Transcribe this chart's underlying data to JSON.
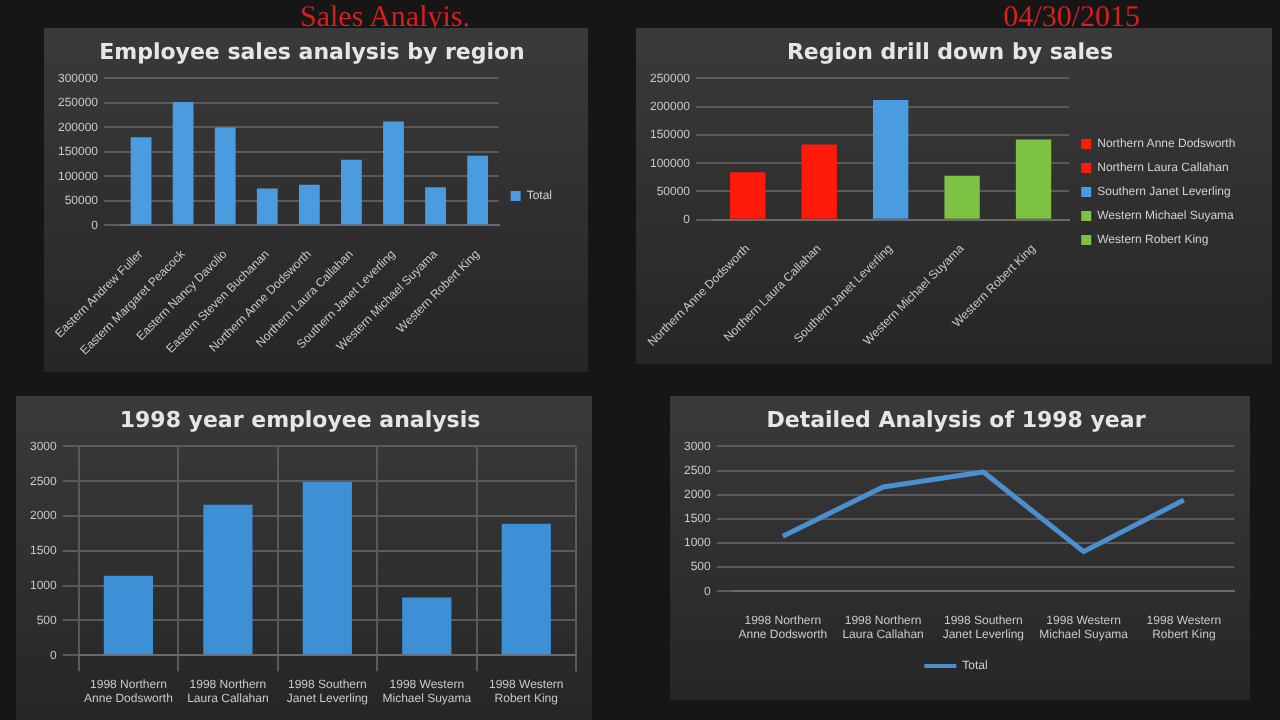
{
  "chart_data": [
    {
      "type": "other",
      "title": "Sales Analyis.",
      "subtitle": "04/30/2015"
    },
    {
      "type": "bar",
      "title": "Employee sales analysis by region",
      "categories": [
        "Eastern Andrew Fuller",
        "Eastern Margaret Peacock",
        "Eastern Nancy Davolio",
        "Eastern Steven Buchanan",
        "Northern Anne Dodsworth",
        "Northern Laura Callahan",
        "Southern Janet Leverling",
        "Western Michael Suyama",
        "Western Robert King"
      ],
      "series": [
        {
          "name": "Total",
          "color": "#4a9be0",
          "values": [
            180000,
            252000,
            200000,
            75000,
            83000,
            134000,
            212000,
            78000,
            142000
          ]
        }
      ],
      "ylim": [
        0,
        300000
      ],
      "yticks": [
        0,
        50000,
        100000,
        150000,
        200000,
        250000,
        300000
      ],
      "grid": "y",
      "legend": "right"
    },
    {
      "type": "bar",
      "title": "Region drill down by sales",
      "categories": [
        "Northern Anne Dodsworth",
        "Northern Laura Callahan",
        "Southern Janet Leverling",
        "Western Michael Suyama",
        "Western Robert King"
      ],
      "series": [
        {
          "name": "Northern Anne Dodsworth",
          "color": "#ff1a0a",
          "values": [
            84000,
            null,
            null,
            null,
            null
          ]
        },
        {
          "name": "Northern Laura Callahan",
          "color": "#ff1a0a",
          "values": [
            null,
            133000,
            null,
            null,
            null
          ]
        },
        {
          "name": "Southern Janet Leverling",
          "color": "#4a9be0",
          "values": [
            null,
            null,
            212000,
            null,
            null
          ]
        },
        {
          "name": "Western Michael Suyama",
          "color": "#7dc242",
          "values": [
            null,
            null,
            null,
            78000,
            null
          ]
        },
        {
          "name": "Western Robert King",
          "color": "#7dc242",
          "values": [
            null,
            null,
            null,
            null,
            142000
          ]
        }
      ],
      "stacked": true,
      "ylim": [
        0,
        250000
      ],
      "yticks": [
        0,
        50000,
        100000,
        150000,
        200000,
        250000
      ],
      "grid": "y",
      "legend": "right"
    },
    {
      "type": "bar",
      "title": "1998 year employee analysis",
      "categories": [
        "1998 Northern Anne Dodsworth",
        "1998 Northern Laura Callahan",
        "1998 Southern Janet Leverling",
        "1998 Western Michael Suyama",
        "1998 Western Robert King"
      ],
      "values": [
        1140,
        2160,
        2490,
        830,
        1890
      ],
      "color": "#3d8fd6",
      "ylim": [
        0,
        3000
      ],
      "yticks": [
        0,
        500,
        1000,
        1500,
        2000,
        2500,
        3000
      ],
      "grid": true
    },
    {
      "type": "line",
      "title": "Detailed Analysis of 1998 year",
      "categories": [
        "1998 Northern Anne Dodsworth",
        "1998 Northern Laura Callahan",
        "1998 Southern Janet Leverling",
        "1998 Western Michael Suyama",
        "1998 Western Robert King"
      ],
      "series": [
        {
          "name": "Total",
          "color": "#4a8fcf",
          "values": [
            1140,
            2160,
            2470,
            820,
            1890
          ]
        }
      ],
      "ylim": [
        0,
        3000
      ],
      "yticks": [
        0,
        500,
        1000,
        1500,
        2000,
        2500,
        3000
      ],
      "grid": "y",
      "legend": "bottom",
      "marker": "none"
    }
  ]
}
